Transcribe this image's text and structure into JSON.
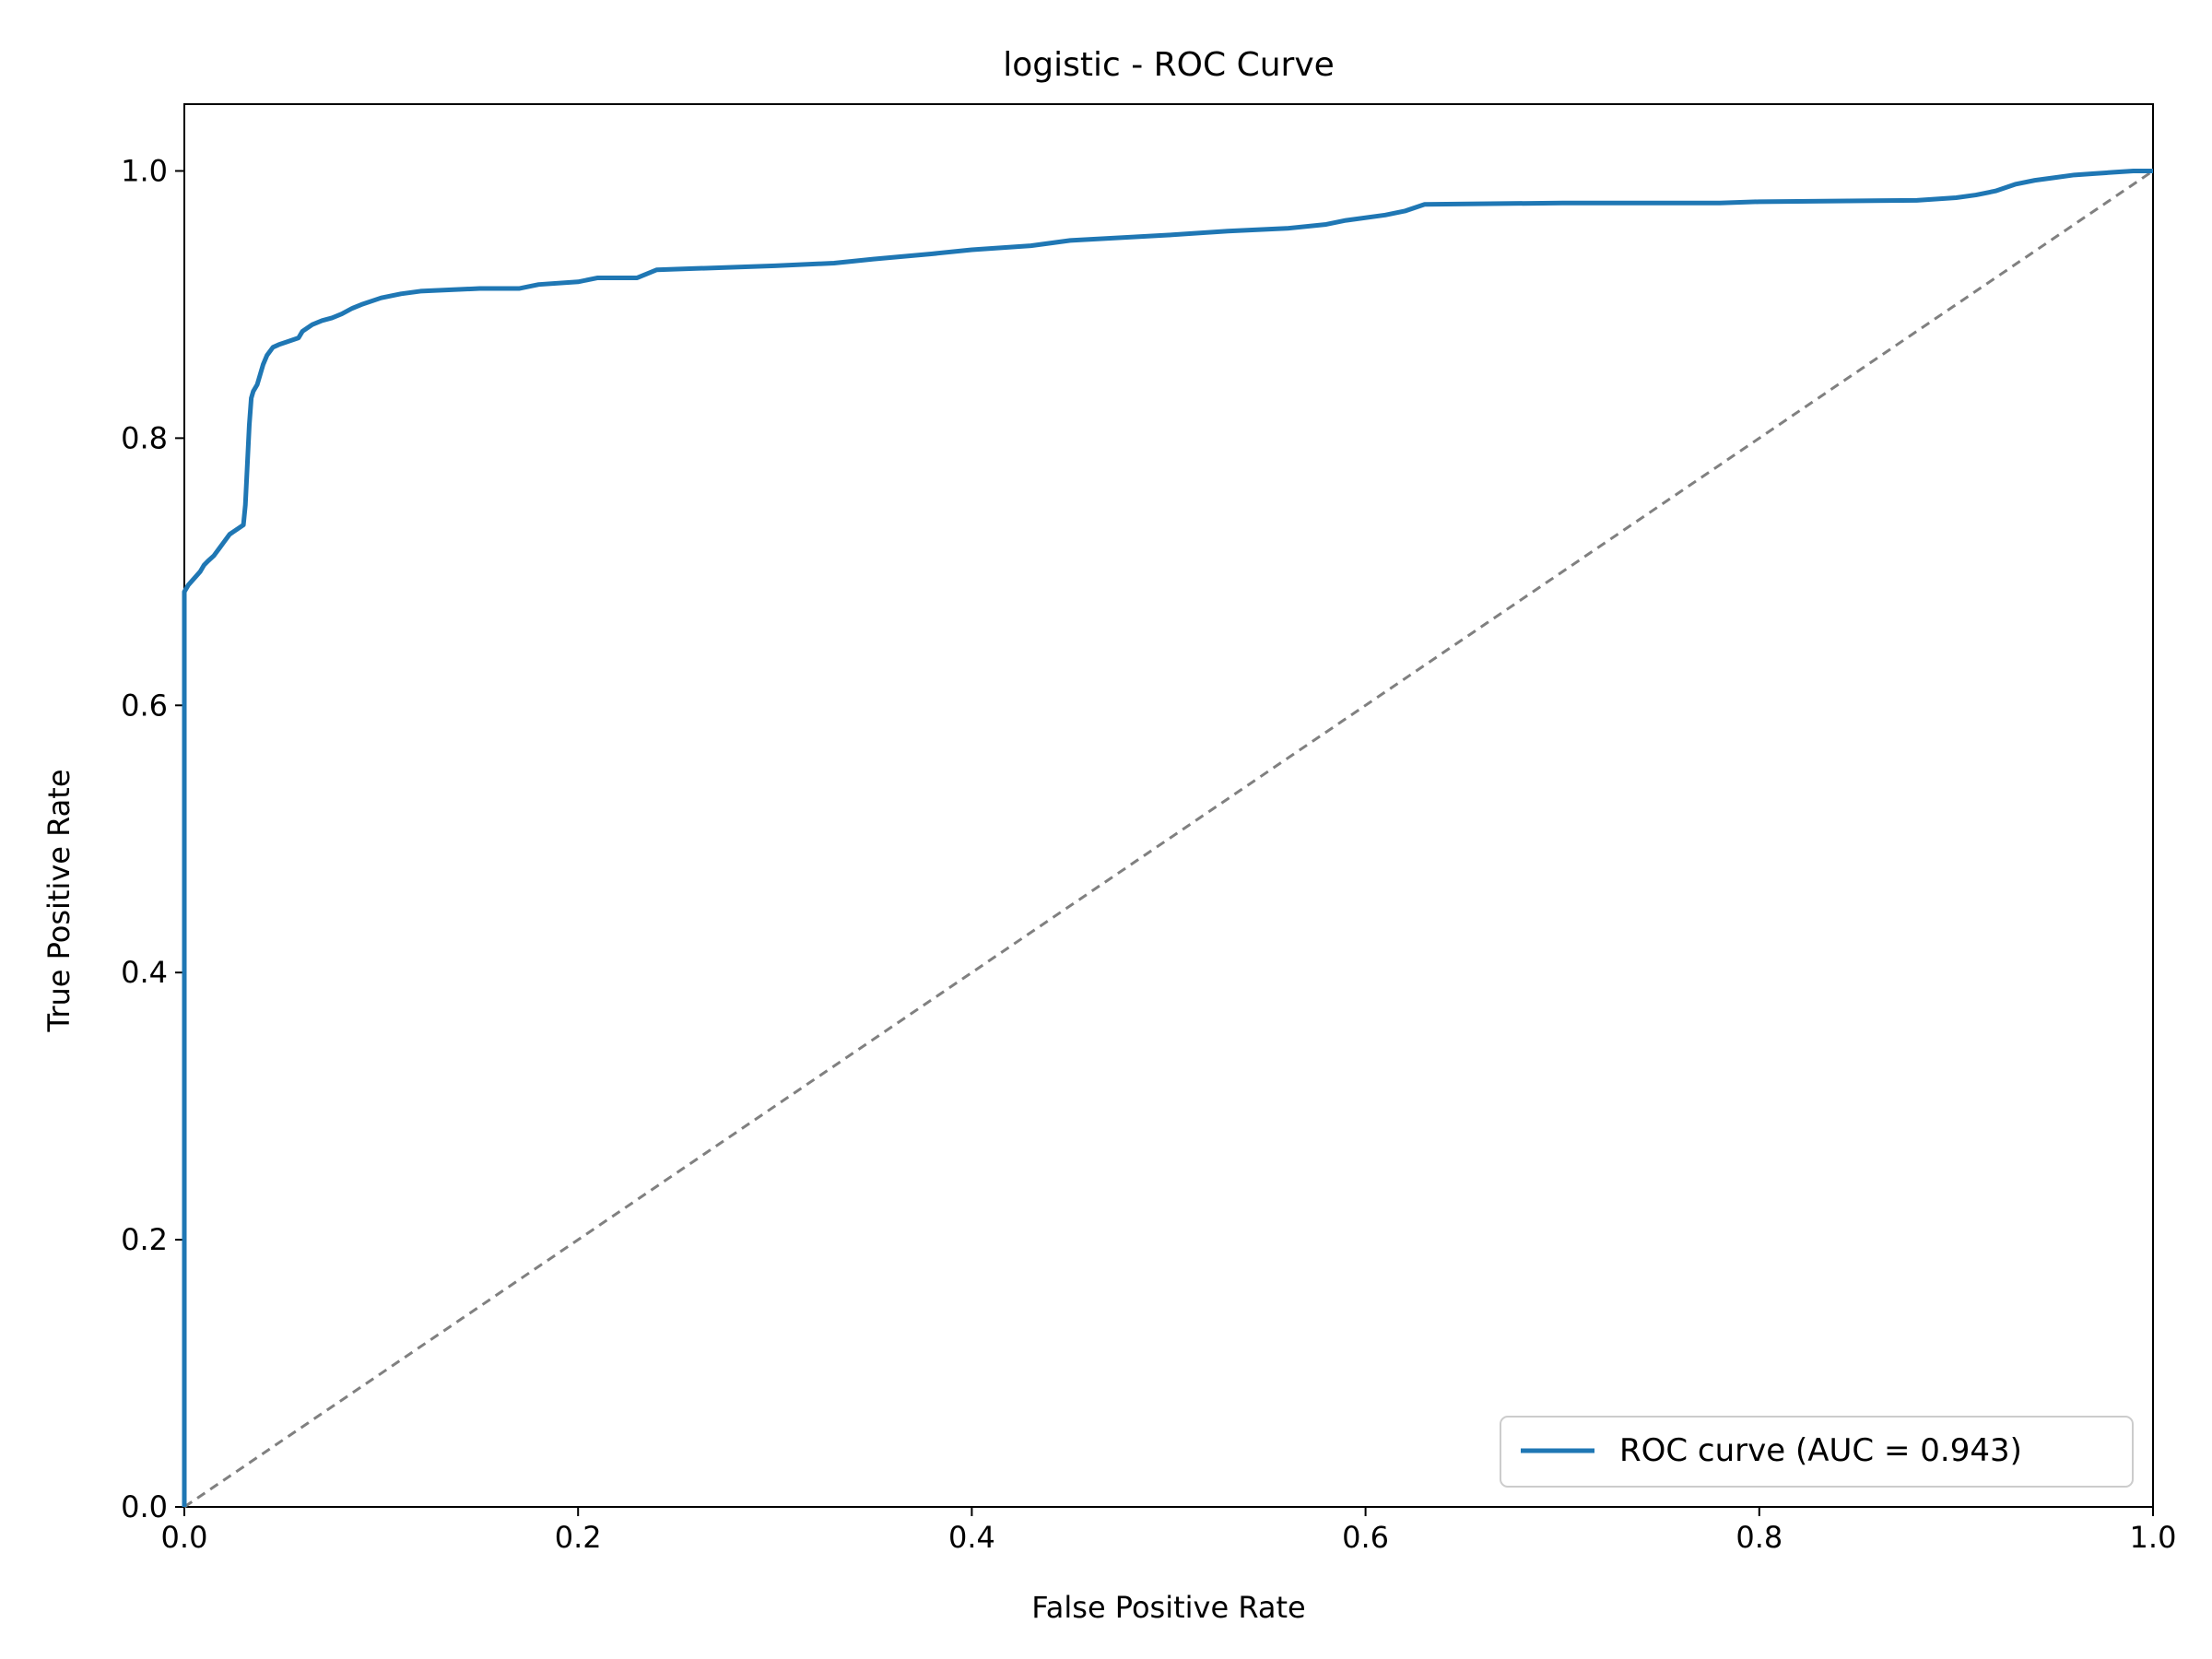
{
  "chart_data": {
    "type": "line",
    "title": "logistic - ROC Curve",
    "xlabel": "False Positive Rate",
    "ylabel": "True Positive Rate",
    "xlim": [
      0.0,
      1.0
    ],
    "ylim": [
      0.0,
      1.05
    ],
    "xticks": [
      "0.0",
      "0.2",
      "0.4",
      "0.6",
      "0.8",
      "1.0"
    ],
    "yticks": [
      "0.0",
      "0.2",
      "0.4",
      "0.6",
      "0.8",
      "1.0"
    ],
    "grid": false,
    "legend_position": "lower-right",
    "series": [
      {
        "name": "ROC curve (AUC = 0.943)",
        "color": "#1f77b4",
        "style": "solid",
        "x": [
          0.0,
          0.0,
          0.002,
          0.005,
          0.008,
          0.01,
          0.012,
          0.015,
          0.018,
          0.02,
          0.023,
          0.025,
          0.027,
          0.03,
          0.031,
          0.032,
          0.033,
          0.034,
          0.035,
          0.037,
          0.04,
          0.042,
          0.045,
          0.048,
          0.052,
          0.058,
          0.06,
          0.065,
          0.07,
          0.075,
          0.08,
          0.085,
          0.09,
          0.1,
          0.11,
          0.12,
          0.15,
          0.17,
          0.18,
          0.2,
          0.21,
          0.23,
          0.24,
          0.26,
          0.3,
          0.33,
          0.35,
          0.38,
          0.4,
          0.43,
          0.45,
          0.5,
          0.53,
          0.56,
          0.58,
          0.59,
          0.61,
          0.62,
          0.63,
          0.7,
          0.78,
          0.8,
          0.88,
          0.9,
          0.91,
          0.92,
          0.93,
          0.94,
          0.95,
          0.96,
          0.97,
          0.98,
          0.99,
          1.0
        ],
        "y": [
          0.0,
          0.685,
          0.69,
          0.695,
          0.7,
          0.705,
          0.708,
          0.712,
          0.718,
          0.722,
          0.728,
          0.73,
          0.732,
          0.735,
          0.75,
          0.78,
          0.81,
          0.83,
          0.835,
          0.84,
          0.855,
          0.862,
          0.868,
          0.87,
          0.872,
          0.875,
          0.88,
          0.885,
          0.888,
          0.89,
          0.893,
          0.897,
          0.9,
          0.905,
          0.908,
          0.91,
          0.912,
          0.912,
          0.915,
          0.917,
          0.92,
          0.92,
          0.926,
          0.927,
          0.929,
          0.931,
          0.934,
          0.938,
          0.941,
          0.944,
          0.948,
          0.952,
          0.955,
          0.957,
          0.96,
          0.963,
          0.967,
          0.97,
          0.975,
          0.976,
          0.976,
          0.977,
          0.978,
          0.98,
          0.982,
          0.985,
          0.99,
          0.993,
          0.995,
          0.997,
          0.998,
          0.999,
          1.0,
          1.0
        ]
      },
      {
        "name": "",
        "color": "#808080",
        "style": "dashed",
        "x": [
          0.0,
          1.0
        ],
        "y": [
          0.0,
          1.0
        ]
      }
    ]
  }
}
